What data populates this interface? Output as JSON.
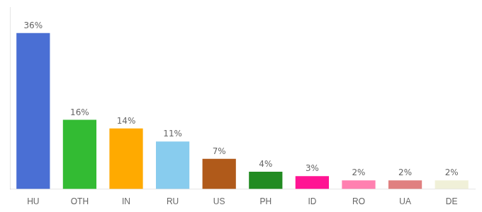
{
  "chart_data": {
    "type": "bar",
    "categories": [
      "HU",
      "OTH",
      "IN",
      "RU",
      "US",
      "PH",
      "ID",
      "RO",
      "UA",
      "DE"
    ],
    "values": [
      36,
      16,
      14,
      11,
      7,
      4,
      3,
      2,
      2,
      2
    ],
    "value_labels": [
      "36%",
      "16%",
      "14%",
      "11%",
      "7%",
      "4%",
      "3%",
      "2%",
      "2%",
      "2%"
    ],
    "data_labels": true,
    "colors": [
      "#4a6fd4",
      "#33bb33",
      "#ffaa00",
      "#88ccee",
      "#b05a1a",
      "#228b22",
      "#ff1493",
      "#ff80b0",
      "#e08080",
      "#f0f0d8"
    ],
    "ylim": [
      0,
      42
    ],
    "yticks": [],
    "grid": false,
    "tick_labels": "x"
  }
}
